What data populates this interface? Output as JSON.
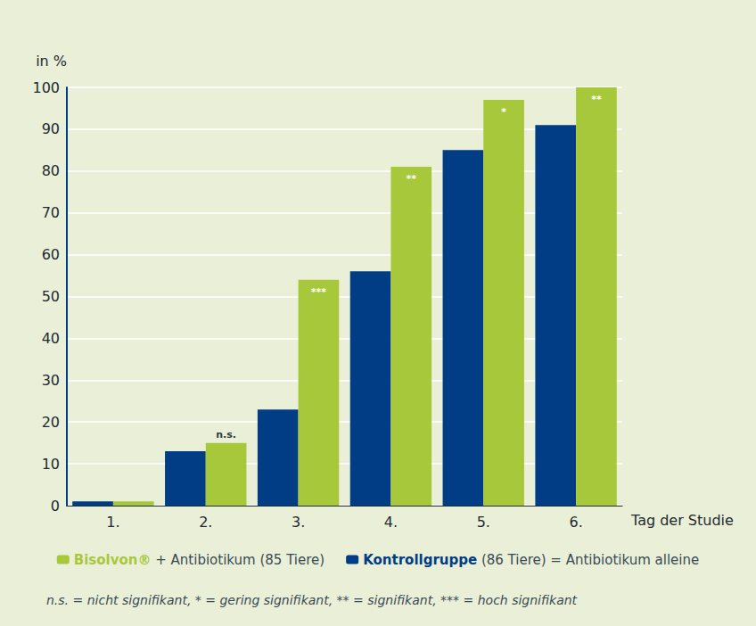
{
  "chart_data": {
    "type": "bar",
    "x_label": "Tag der Studie",
    "y_label": "in %",
    "categories": [
      "1.",
      "2.",
      "3.",
      "4.",
      "5.",
      "6."
    ],
    "series": [
      {
        "name": "Bisolvon® + Antibiotikum (85 Tiere)",
        "color": "#a8c83c",
        "values": [
          1,
          15,
          54,
          81,
          97,
          100
        ],
        "annotations": [
          null,
          "n.s.",
          "***",
          "**",
          "*",
          "**"
        ]
      },
      {
        "name": "Kontrollgruppe (86 Tiere) = Antibiotikum alleine",
        "color": "#003d85",
        "values": [
          1,
          13,
          23,
          56,
          85,
          91
        ]
      }
    ],
    "ylim": [
      0,
      100
    ],
    "yticks": [
      0,
      10,
      20,
      30,
      40,
      50,
      60,
      70,
      80,
      90,
      100
    ],
    "grid": true,
    "legend": "bottom",
    "note": "n.s. = nicht signifikant, * = gering signifikant, ** = signifikant, *** = hoch signifikant"
  }
}
